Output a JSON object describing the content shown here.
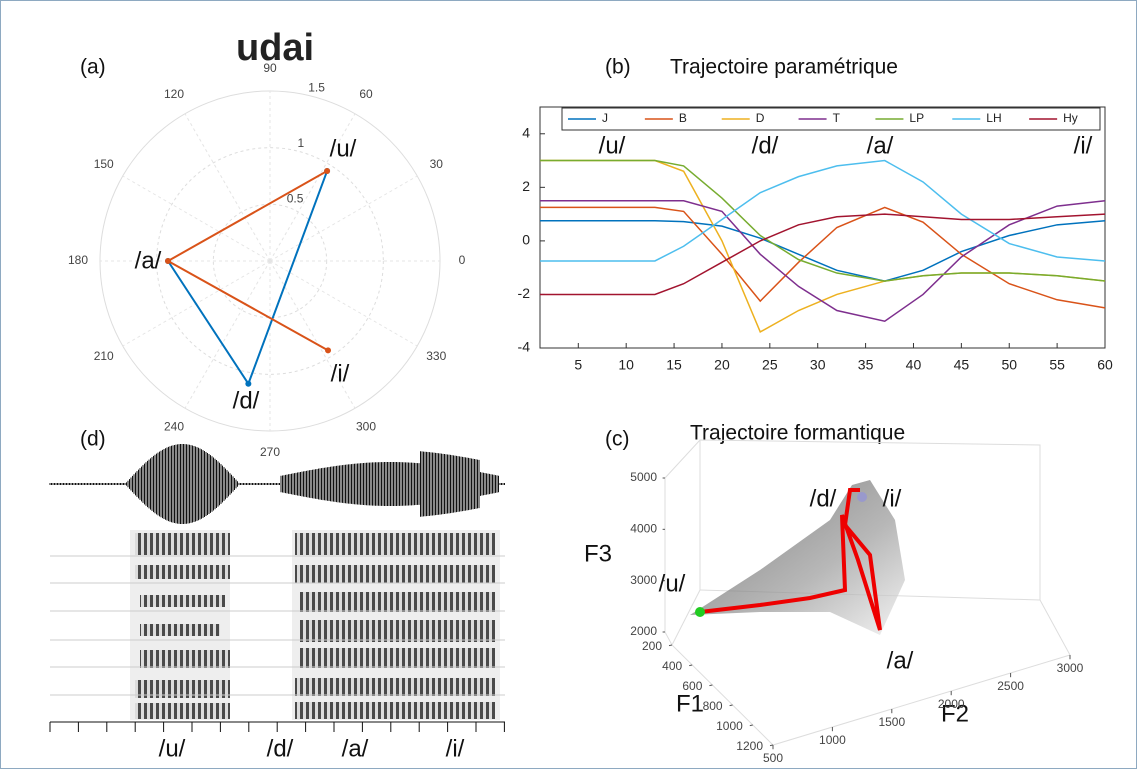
{
  "chart_data": [
    {
      "type": "polar",
      "panel": "(a)",
      "title": "udai",
      "thetaticks": [
        0,
        30,
        60,
        90,
        120,
        150,
        180,
        210,
        240,
        270,
        300,
        330
      ],
      "rlim": [
        0,
        1.5
      ],
      "rticks": [
        0.5,
        1,
        1.5
      ],
      "series": [
        {
          "color": "#0072BD",
          "theta": [
            57.6,
            260,
            180
          ],
          "r": [
            0.94,
            1.1,
            0.9
          ]
        },
        {
          "color": "#D95319",
          "theta": [
            57.6,
            180,
            303
          ],
          "r": [
            0.94,
            0.9,
            0.94
          ]
        }
      ],
      "annotations": [
        "/u/",
        "/a/",
        "/i/",
        "/d/"
      ]
    },
    {
      "type": "line",
      "panel": "(b)",
      "title": "Trajectoire paramétrique",
      "x": [
        1,
        5,
        10,
        13,
        16,
        20,
        24,
        28,
        32,
        37,
        41,
        45,
        50,
        55,
        60
      ],
      "xlim": [
        1,
        60
      ],
      "xticks": [
        5,
        10,
        15,
        20,
        25,
        30,
        35,
        40,
        45,
        50,
        55,
        60
      ],
      "ylim": [
        -4,
        5
      ],
      "yticks": [
        -4,
        -2,
        0,
        2,
        4
      ],
      "series": [
        {
          "name": "J",
          "color": "#0072BD",
          "values": [
            0.75,
            0.75,
            0.75,
            0.75,
            0.72,
            0.55,
            0.1,
            -0.5,
            -1.1,
            -1.5,
            -1.1,
            -0.4,
            0.2,
            0.6,
            0.75
          ]
        },
        {
          "name": "B",
          "color": "#D95319",
          "values": [
            1.25,
            1.25,
            1.25,
            1.25,
            1.1,
            -0.5,
            -2.25,
            -0.8,
            0.5,
            1.25,
            0.7,
            -0.5,
            -1.6,
            -2.2,
            -2.5
          ]
        },
        {
          "name": "D",
          "color": "#EDB120",
          "values": [
            3,
            3,
            3,
            3,
            2.6,
            0,
            -3.4,
            -2.6,
            -2,
            -1.5,
            -1.3,
            -1.2,
            -1.2,
            -1.3,
            -1.5
          ]
        },
        {
          "name": "T",
          "color": "#7E2F8E",
          "values": [
            1.5,
            1.5,
            1.5,
            1.5,
            1.5,
            1.1,
            -0.5,
            -1.7,
            -2.6,
            -3,
            -2,
            -0.6,
            0.6,
            1.3,
            1.5
          ]
        },
        {
          "name": "LP",
          "color": "#77AC30",
          "values": [
            3,
            3,
            3,
            3,
            2.8,
            1.6,
            0.2,
            -0.7,
            -1.2,
            -1.5,
            -1.3,
            -1.2,
            -1.2,
            -1.3,
            -1.5
          ]
        },
        {
          "name": "LH",
          "color": "#4DBEEE",
          "values": [
            -0.75,
            -0.75,
            -0.75,
            -0.75,
            -0.2,
            0.8,
            1.8,
            2.4,
            2.8,
            3,
            2.2,
            1,
            -0.1,
            -0.6,
            -0.75
          ]
        },
        {
          "name": "Hy",
          "color": "#A2142F",
          "values": [
            -2,
            -2,
            -2,
            -2,
            -1.6,
            -0.8,
            0,
            0.6,
            0.9,
            1,
            0.9,
            0.8,
            0.8,
            0.9,
            1
          ]
        }
      ],
      "annotations": [
        "/u/",
        "/d/",
        "/a/",
        "/i/"
      ]
    },
    {
      "type": "line3d",
      "panel": "(c)",
      "title": "Trajectoire formantique",
      "xlabel": "F1",
      "ylabel": "F2",
      "zlabel": "F3",
      "xlim": [
        200,
        1200
      ],
      "xticks": [
        200,
        400,
        600,
        800,
        1000,
        1200
      ],
      "ylim": [
        500,
        3000
      ],
      "yticks": [
        500,
        1000,
        1500,
        2000,
        2500,
        3000
      ],
      "zlim": [
        2000,
        5000
      ],
      "zticks": [
        2000,
        3000,
        4000,
        5000
      ],
      "annotations": [
        "/u/",
        "/d/",
        "/i/",
        "/a/"
      ]
    },
    {
      "type": "spectrogram",
      "panel": "(d)",
      "annotations": [
        "/u/",
        "/d/",
        "/a/",
        "/i/"
      ]
    }
  ]
}
